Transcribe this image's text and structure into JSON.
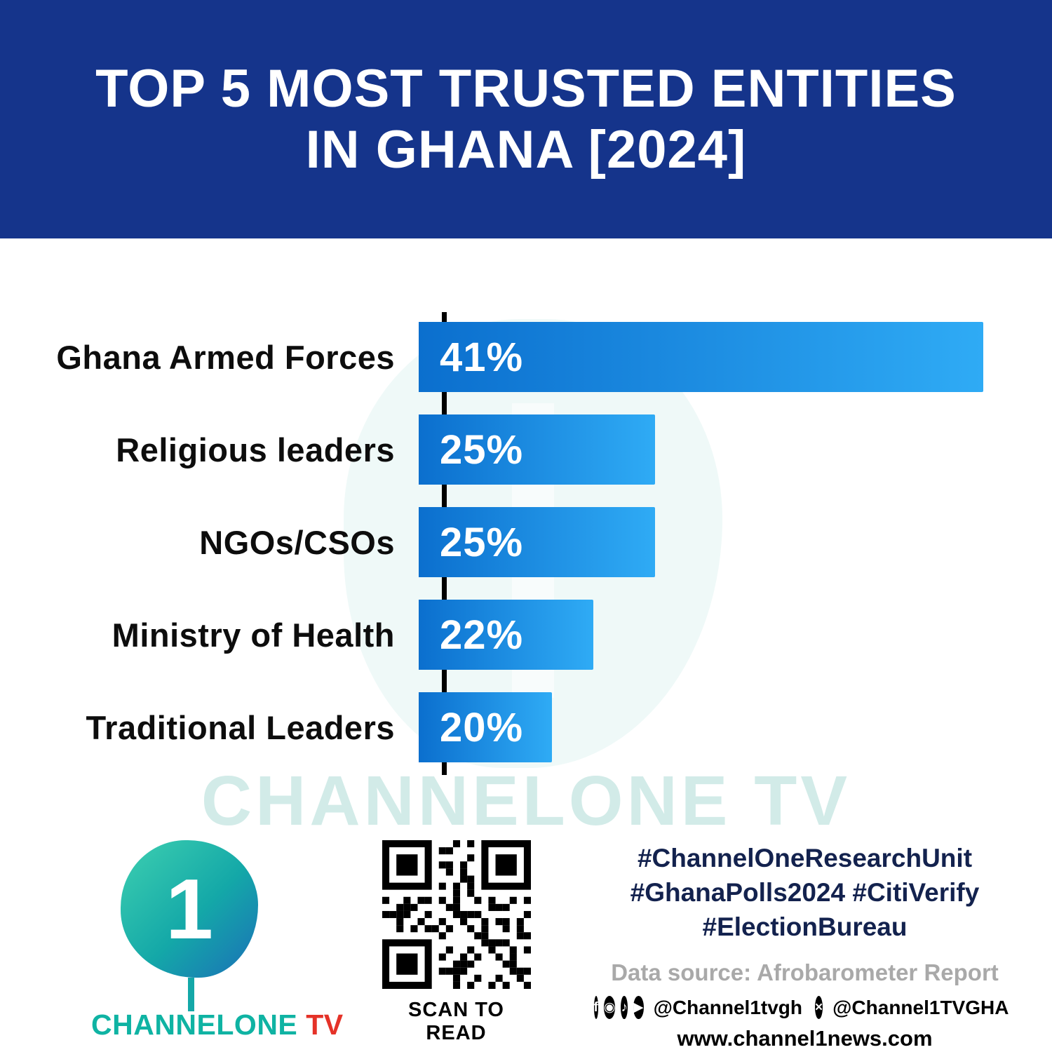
{
  "header": {
    "title_line1": "TOP 5 MOST TRUSTED ENTITIES",
    "title_line2": "IN GHANA [2024]"
  },
  "chart_data": {
    "type": "bar",
    "orientation": "horizontal",
    "title": "TOP 5 MOST TRUSTED ENTITIES IN GHANA [2024]",
    "categories": [
      "Ghana Armed Forces",
      "Religious leaders",
      "NGOs/CSOs",
      "Ministry of Health",
      "Traditional Leaders"
    ],
    "values": [
      41,
      25,
      25,
      22,
      20
    ],
    "value_labels": [
      "41%",
      "25%",
      "25%",
      "22%",
      "20%"
    ],
    "xlabel": "",
    "ylabel": "",
    "xlim": [
      0,
      41
    ],
    "grid": false,
    "legend": false,
    "bar_gradient": [
      "#0b6fce",
      "#2fabf5"
    ],
    "axis_color": "#000000"
  },
  "watermark": {
    "text": "CHANNELONE TV"
  },
  "footer": {
    "brand": {
      "logo_numeral": "1",
      "name": "CHANNELONE",
      "tv": " TV"
    },
    "qr": {
      "caption": "SCAN TO READ"
    },
    "hashtags": [
      "#ChannelOneResearchUnit",
      "#GhanaPolls2024 #CitiVerify",
      "#ElectionBureau"
    ],
    "data_source": "Data source: Afrobarometer Report",
    "social": {
      "icons": [
        "facebook-icon",
        "instagram-icon",
        "tiktok-icon",
        "youtube-icon",
        "x-icon"
      ],
      "handle_main": "@Channel1tvgh",
      "handle_x": "@Channel1TVGHA"
    },
    "website": "www.channel1news.com"
  },
  "colors": {
    "header_bg": "#15348b",
    "bar_start": "#0b6fce",
    "bar_end": "#2fabf5",
    "brand_teal": "#0fb3a3",
    "brand_red": "#e53228",
    "hashtag_navy": "#13224e",
    "source_gray": "#a9a9a9"
  }
}
